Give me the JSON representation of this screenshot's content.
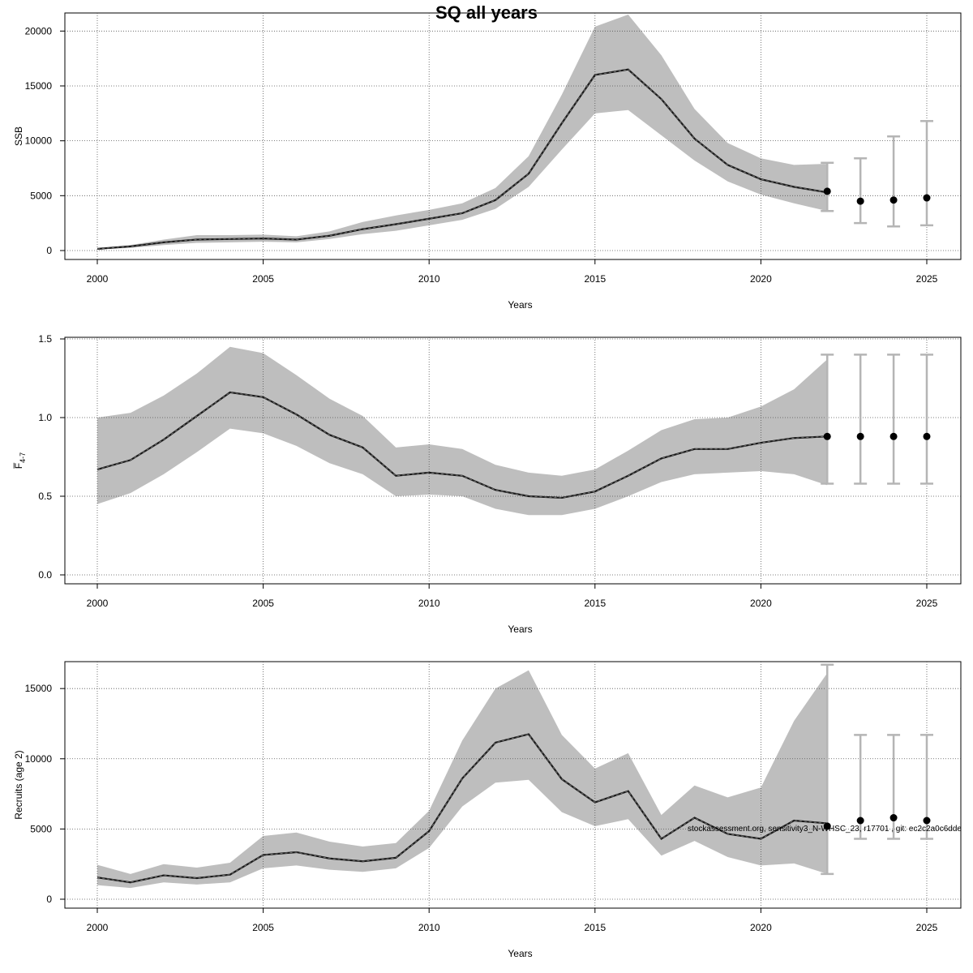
{
  "title": "SQ all years",
  "footer": "stockassessment.org, sensitivity3_N-WHSC_23, r17701 , git: ec2c2a0c6dde",
  "colors": {
    "band": "#bebebe",
    "line": "#1a1a1a",
    "point": "#000000",
    "errorbar": "#b5b5b5",
    "grid": "#555555"
  },
  "chart_data": [
    {
      "type": "line",
      "ylabel": "SSB",
      "xlabel": "Years",
      "xlim": [
        2000,
        2025
      ],
      "ylim": [
        0,
        21500
      ],
      "xticks": [
        "2000",
        "2005",
        "2010",
        "2015",
        "2020",
        "2025"
      ],
      "yticks": [
        "0",
        "5000",
        "10000",
        "15000",
        "20000"
      ],
      "grid": true,
      "x": [
        2000,
        2001,
        2002,
        2003,
        2004,
        2005,
        2006,
        2007,
        2008,
        2009,
        2010,
        2011,
        2012,
        2013,
        2014,
        2015,
        2016,
        2017,
        2018,
        2019,
        2020,
        2021,
        2022
      ],
      "estimate": [
        150,
        380,
        750,
        1000,
        1050,
        1100,
        1000,
        1350,
        1950,
        2400,
        2900,
        3400,
        4600,
        7000,
        11600,
        16000,
        16500,
        13800,
        10200,
        7800,
        6500,
        5800,
        5300
      ],
      "lower": [
        100,
        250,
        500,
        700,
        750,
        800,
        750,
        1050,
        1500,
        1800,
        2300,
        2800,
        3800,
        5800,
        9200,
        12500,
        12800,
        10500,
        8200,
        6300,
        5100,
        4300,
        3600
      ],
      "upper": [
        250,
        500,
        1000,
        1400,
        1400,
        1450,
        1300,
        1750,
        2600,
        3200,
        3700,
        4300,
        5700,
        8600,
        14200,
        20400,
        21500,
        17800,
        12900,
        9800,
        8400,
        7800,
        7900
      ],
      "forecast": {
        "x": [
          2022,
          2023,
          2024,
          2025
        ],
        "median": [
          5400,
          4500,
          4600,
          4800
        ],
        "low": [
          3600,
          2500,
          2200,
          2300
        ],
        "high": [
          8000,
          8400,
          10400,
          11800
        ]
      }
    },
    {
      "type": "line",
      "ylabel": "F̅",
      "ylabel_sub": "4-7",
      "xlabel": "Years",
      "xlim": [
        2000,
        2025
      ],
      "ylim": [
        0,
        1.5
      ],
      "xticks": [
        "2000",
        "2005",
        "2010",
        "2015",
        "2020",
        "2025"
      ],
      "yticks": [
        "0.0",
        "0.5",
        "1.0",
        "1.5"
      ],
      "grid": true,
      "x": [
        2000,
        2001,
        2002,
        2003,
        2004,
        2005,
        2006,
        2007,
        2008,
        2009,
        2010,
        2011,
        2012,
        2013,
        2014,
        2015,
        2016,
        2017,
        2018,
        2019,
        2020,
        2021,
        2022
      ],
      "estimate": [
        0.67,
        0.73,
        0.86,
        1.01,
        1.16,
        1.13,
        1.02,
        0.89,
        0.81,
        0.63,
        0.65,
        0.63,
        0.54,
        0.5,
        0.49,
        0.53,
        0.63,
        0.74,
        0.8,
        0.8,
        0.84,
        0.87,
        0.88
      ],
      "lower": [
        0.45,
        0.52,
        0.64,
        0.78,
        0.93,
        0.9,
        0.82,
        0.71,
        0.64,
        0.5,
        0.51,
        0.5,
        0.42,
        0.38,
        0.38,
        0.42,
        0.5,
        0.59,
        0.64,
        0.65,
        0.66,
        0.64,
        0.57
      ],
      "upper": [
        1.0,
        1.03,
        1.14,
        1.28,
        1.45,
        1.41,
        1.27,
        1.12,
        1.01,
        0.81,
        0.83,
        0.8,
        0.7,
        0.65,
        0.63,
        0.67,
        0.79,
        0.92,
        0.99,
        1.0,
        1.07,
        1.18,
        1.37
      ],
      "forecast": {
        "x": [
          2022,
          2023,
          2024,
          2025
        ],
        "median": [
          0.88,
          0.88,
          0.88,
          0.88
        ],
        "low": [
          0.58,
          0.58,
          0.58,
          0.58
        ],
        "high": [
          1.4,
          1.4,
          1.4,
          1.4
        ]
      }
    },
    {
      "type": "line",
      "ylabel": "Recruits (age 2)",
      "xlabel": "Years",
      "xlim": [
        2000,
        2025
      ],
      "ylim": [
        0,
        16800
      ],
      "xticks": [
        "2000",
        "2005",
        "2010",
        "2015",
        "2020",
        "2025"
      ],
      "yticks": [
        "0",
        "5000",
        "10000",
        "15000"
      ],
      "grid": true,
      "x": [
        2000,
        2001,
        2002,
        2003,
        2004,
        2005,
        2006,
        2007,
        2008,
        2009,
        2010,
        2011,
        2012,
        2013,
        2014,
        2015,
        2016,
        2017,
        2018,
        2019,
        2020,
        2021,
        2022
      ],
      "estimate": [
        1550,
        1200,
        1700,
        1500,
        1750,
        3150,
        3350,
        2900,
        2700,
        2950,
        4850,
        8600,
        11150,
        11750,
        8550,
        6900,
        7700,
        4300,
        5800,
        4650,
        4300,
        5600,
        5400
      ],
      "lower": [
        1000,
        800,
        1200,
        1050,
        1200,
        2200,
        2400,
        2100,
        1950,
        2200,
        3650,
        6600,
        8300,
        8500,
        6200,
        5200,
        5700,
        3100,
        4150,
        3000,
        2400,
        2550,
        1800
      ],
      "upper": [
        2450,
        1800,
        2500,
        2250,
        2600,
        4500,
        4750,
        4100,
        3750,
        4000,
        6300,
        11300,
        15000,
        16300,
        11700,
        9300,
        10400,
        6000,
        8100,
        7250,
        7950,
        12700,
        16100
      ],
      "forecast": {
        "x": [
          2022,
          2023,
          2024,
          2025
        ],
        "median": [
          5200,
          5600,
          5800,
          5600
        ],
        "low": [
          1800,
          4300,
          4300,
          4300
        ],
        "high": [
          16700,
          11700,
          11700,
          11700
        ]
      }
    }
  ]
}
